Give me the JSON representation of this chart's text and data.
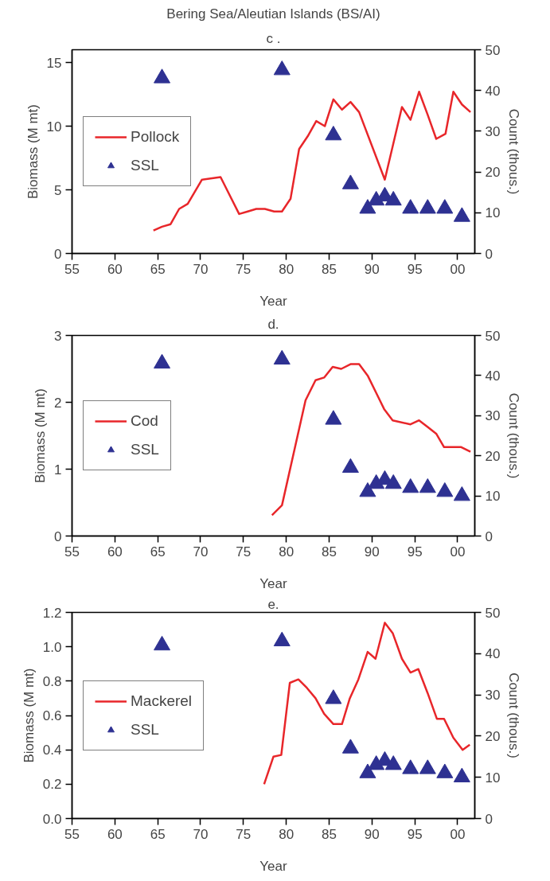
{
  "chart_data": [
    {
      "type": "line",
      "title": "Bering Sea/Aleutian Islands (BS/AI)",
      "subtitle": "c .",
      "xlabel": "Year",
      "ylabel": "Biomass (M mt)",
      "y2label": "Count (thous.)",
      "legend": "left",
      "xlim": [
        "1955",
        "2002"
      ],
      "xticks": [
        {
          "value": "1955",
          "label": "55"
        },
        {
          "value": "1960",
          "label": "60"
        },
        {
          "value": "1965",
          "label": "65"
        },
        {
          "value": "1970",
          "label": "70"
        },
        {
          "value": "1975",
          "label": "75"
        },
        {
          "value": "1980",
          "label": "80"
        },
        {
          "value": "1985",
          "label": "85"
        },
        {
          "value": "1990",
          "label": "90"
        },
        {
          "value": "1995",
          "label": "95"
        },
        {
          "value": "2000",
          "label": "00"
        }
      ],
      "ylim": [
        0,
        16
      ],
      "yticks": [
        0,
        5,
        10,
        15
      ],
      "y2lim": [
        0,
        50
      ],
      "y2ticks": [
        0,
        10,
        20,
        30,
        40,
        50
      ],
      "series": [
        {
          "name": "Pollock",
          "color": "#e8262a",
          "x": [
            "1964-07",
            "1965-07",
            "1966-07",
            "1967-07",
            "1968-07",
            "1970-03",
            "1972-05",
            "1974-07",
            "1975-07",
            "1976-07",
            "1977-07",
            "1978-08",
            "1979-07",
            "1980-07",
            "1981-07",
            "1982-07",
            "1983-07",
            "1984-07",
            "1985-07",
            "1986-07",
            "1987-07",
            "1988-07",
            "1991-07",
            "1993-07",
            "1994-07",
            "1995-07",
            "1996-07",
            "1997-07",
            "1998-08",
            "1999-07",
            "2000-07",
            "2001-07"
          ],
          "values": [
            1.8,
            2.1,
            2.3,
            3.5,
            3.9,
            5.8,
            6.0,
            3.1,
            3.3,
            3.5,
            3.5,
            3.3,
            3.3,
            4.3,
            8.2,
            9.2,
            10.4,
            10.0,
            12.1,
            11.3,
            11.9,
            11.1,
            5.8,
            11.5,
            10.5,
            12.7,
            10.9,
            9.0,
            9.4,
            12.7,
            11.7,
            11.1
          ]
        },
        {
          "name": "SSL",
          "type": "scatter",
          "marker": "triangle",
          "axis": "y2",
          "color": "#2e3192",
          "x": [
            "1965-07",
            "1979-07",
            "1985-07",
            "1987-07",
            "1989-07",
            "1990-07",
            "1991-07",
            "1992-07",
            "1994-07",
            "1996-07",
            "1998-07",
            "2000-07"
          ],
          "values": [
            43,
            45,
            29,
            17,
            11,
            13,
            14,
            13,
            11,
            11,
            11,
            9
          ]
        }
      ]
    },
    {
      "type": "line",
      "subtitle": "d.",
      "xlabel": "Year",
      "ylabel": "Biomass (M mt)",
      "y2label": "Count (thous.)",
      "legend": "left",
      "xlim": [
        "1955",
        "2002"
      ],
      "xticks": [
        {
          "value": "1955",
          "label": "55"
        },
        {
          "value": "1960",
          "label": "60"
        },
        {
          "value": "1965",
          "label": "65"
        },
        {
          "value": "1970",
          "label": "70"
        },
        {
          "value": "1975",
          "label": "75"
        },
        {
          "value": "1980",
          "label": "80"
        },
        {
          "value": "1985",
          "label": "85"
        },
        {
          "value": "1990",
          "label": "90"
        },
        {
          "value": "1995",
          "label": "95"
        },
        {
          "value": "2000",
          "label": "00"
        }
      ],
      "ylim": [
        0,
        3
      ],
      "yticks": [
        0,
        1,
        2,
        3
      ],
      "y2lim": [
        0,
        50
      ],
      "y2ticks": [
        0,
        10,
        20,
        30,
        40,
        50
      ],
      "series": [
        {
          "name": "Cod",
          "color": "#e8262a",
          "x": [
            "1978-05",
            "1979-07",
            "1982-04",
            "1983-06",
            "1984-06",
            "1985-06",
            "1986-06",
            "1987-07",
            "1988-07",
            "1989-07",
            "1990-07",
            "1991-06",
            "1992-06",
            "1994-07",
            "1995-07",
            "1996-07",
            "1997-07",
            "1998-06",
            "2000-06",
            "2001-07"
          ],
          "values": [
            0.31,
            0.46,
            2.03,
            2.33,
            2.37,
            2.53,
            2.5,
            2.57,
            2.57,
            2.4,
            2.14,
            1.9,
            1.73,
            1.67,
            1.73,
            1.63,
            1.53,
            1.33,
            1.33,
            1.26
          ]
        },
        {
          "name": "SSL",
          "type": "scatter",
          "marker": "triangle",
          "axis": "y2",
          "color": "#2e3192",
          "x": [
            "1965-07",
            "1979-07",
            "1985-07",
            "1987-07",
            "1989-07",
            "1990-07",
            "1991-07",
            "1992-07",
            "1994-07",
            "1996-07",
            "1998-07",
            "2000-07"
          ],
          "values": [
            43,
            44,
            29,
            17,
            11,
            13,
            14,
            13,
            12,
            12,
            11,
            10
          ]
        }
      ]
    },
    {
      "type": "line",
      "subtitle": "e.",
      "xlabel": "Year",
      "ylabel": "Biomass (M mt)",
      "y2label": "Count (thous.)",
      "legend": "left",
      "xlim": [
        "1955",
        "2002"
      ],
      "xticks": [
        {
          "value": "1955",
          "label": "55"
        },
        {
          "value": "1960",
          "label": "60"
        },
        {
          "value": "1965",
          "label": "65"
        },
        {
          "value": "1970",
          "label": "70"
        },
        {
          "value": "1975",
          "label": "75"
        },
        {
          "value": "1980",
          "label": "80"
        },
        {
          "value": "1985",
          "label": "85"
        },
        {
          "value": "1990",
          "label": "90"
        },
        {
          "value": "1995",
          "label": "95"
        },
        {
          "value": "2000",
          "label": "00"
        }
      ],
      "ylim": [
        0,
        1.2
      ],
      "yticks": [
        {
          "value": 0,
          "label": "0.0"
        },
        0.2,
        0.4,
        0.6,
        0.8,
        {
          "value": 1,
          "label": "1.0"
        },
        1.2
      ],
      "y2lim": [
        0,
        50
      ],
      "y2ticks": [
        0,
        10,
        20,
        30,
        40,
        50
      ],
      "series": [
        {
          "name": "Mackerel",
          "color": "#e8262a",
          "x": [
            "1977-06",
            "1978-07",
            "1979-06",
            "1980-06",
            "1981-06",
            "1982-06",
            "1983-06",
            "1984-06",
            "1985-07",
            "1986-07",
            "1987-06",
            "1988-06",
            "1989-07",
            "1990-06",
            "1991-07",
            "1992-06",
            "1993-07",
            "1994-07",
            "1995-06",
            "1996-07",
            "1997-08",
            "1998-06",
            "1999-07",
            "2000-08",
            "2001-06"
          ],
          "values": [
            0.2,
            0.36,
            0.37,
            0.79,
            0.81,
            0.76,
            0.7,
            0.61,
            0.55,
            0.55,
            0.7,
            0.81,
            0.97,
            0.93,
            1.14,
            1.08,
            0.93,
            0.85,
            0.87,
            0.73,
            0.58,
            0.58,
            0.47,
            0.4,
            0.43
          ]
        },
        {
          "name": "SSL",
          "type": "scatter",
          "marker": "triangle",
          "axis": "y2",
          "color": "#2e3192",
          "x": [
            "1965-07",
            "1979-07",
            "1985-07",
            "1987-07",
            "1989-07",
            "1990-07",
            "1991-07",
            "1992-07",
            "1994-07",
            "1996-07",
            "1998-07",
            "2000-07"
          ],
          "values": [
            42,
            43,
            29,
            17,
            11,
            13,
            14,
            13,
            12,
            12,
            11,
            10
          ]
        }
      ]
    }
  ]
}
